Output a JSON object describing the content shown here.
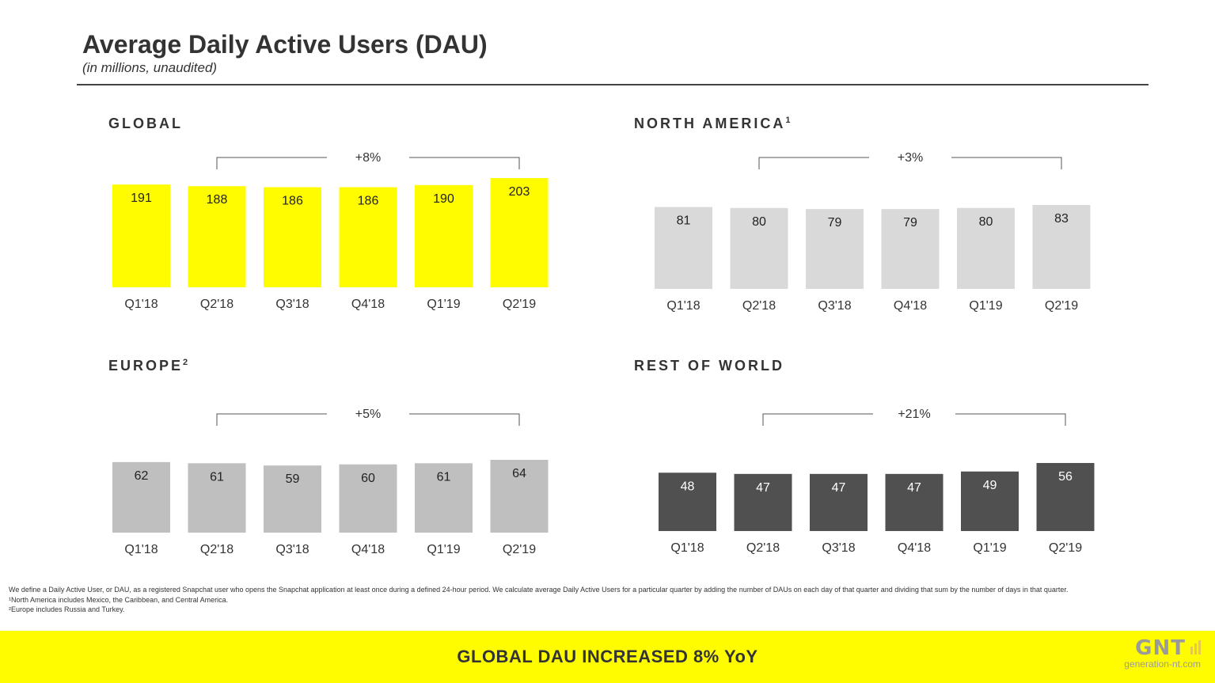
{
  "header": {
    "title": "Average Daily Active Users (DAU)",
    "subtitle": "(in millions, unaudited)"
  },
  "colors": {
    "global": "#fffc00",
    "north_america": "#d9d9d9",
    "europe": "#bfbfbf",
    "rest_of_world": "#505050",
    "banner": "#fffc00"
  },
  "chart_data": [
    {
      "id": "global",
      "type": "bar",
      "title": "GLOBAL",
      "footnote_mark": "",
      "categories": [
        "Q1'18",
        "Q2'18",
        "Q3'18",
        "Q4'18",
        "Q1'19",
        "Q2'19"
      ],
      "values": [
        191,
        188,
        186,
        186,
        190,
        203
      ],
      "growth_label": "+8%",
      "bar_color": "#fffc00",
      "label_color": "#222222"
    },
    {
      "id": "north_america",
      "type": "bar",
      "title": "NORTH AMERICA",
      "footnote_mark": "1",
      "categories": [
        "Q1'18",
        "Q2'18",
        "Q3'18",
        "Q4'18",
        "Q1'19",
        "Q2'19"
      ],
      "values": [
        81,
        80,
        79,
        79,
        80,
        83
      ],
      "growth_label": "+3%",
      "bar_color": "#d9d9d9",
      "label_color": "#222222"
    },
    {
      "id": "europe",
      "type": "bar",
      "title": "EUROPE",
      "footnote_mark": "2",
      "categories": [
        "Q1'18",
        "Q2'18",
        "Q3'18",
        "Q4'18",
        "Q1'19",
        "Q2'19"
      ],
      "values": [
        62,
        61,
        59,
        60,
        61,
        64
      ],
      "growth_label": "+5%",
      "bar_color": "#bfbfbf",
      "label_color": "#222222"
    },
    {
      "id": "rest_of_world",
      "type": "bar",
      "title": "REST OF WORLD",
      "footnote_mark": "",
      "categories": [
        "Q1'18",
        "Q2'18",
        "Q3'18",
        "Q4'18",
        "Q1'19",
        "Q2'19"
      ],
      "values": [
        48,
        47,
        47,
        47,
        49,
        56
      ],
      "growth_label": "+21%",
      "bar_color": "#505050",
      "label_color": "#ffffff"
    }
  ],
  "footnotes": [
    "We define a Daily Active User, or DAU, as a registered Snapchat user who opens the Snapchat application at least once during a defined 24-hour period. We calculate average Daily Active Users for a particular quarter by adding the number of DAUs on each day of that quarter and dividing that sum by the number of days in that quarter.",
    "¹North America includes Mexico, the Caribbean, and Central America.",
    "²Europe includes Russia and Turkey."
  ],
  "banner": {
    "text": "GLOBAL DAU INCREASED 8% YoY"
  },
  "watermark": {
    "logo": "GNT",
    "site": "generation-nt.com"
  }
}
